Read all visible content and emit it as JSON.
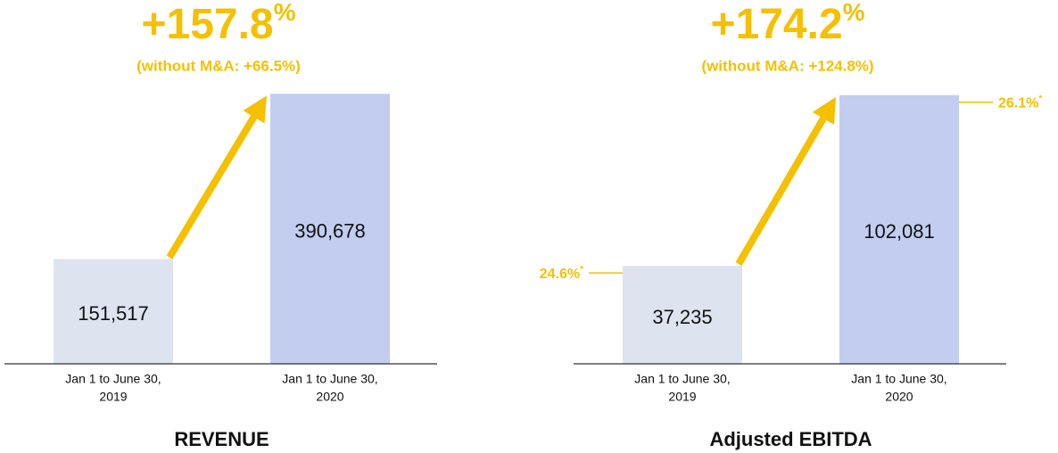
{
  "chart_data": [
    {
      "type": "bar",
      "title": "REVENUE",
      "growth": "+157.8",
      "growth_unit": "%",
      "subtitle": "(without M&A: +66.5%)",
      "categories": [
        [
          "Jan 1 to June 30,",
          "2019"
        ],
        [
          "Jan 1 to June 30,",
          "2020"
        ]
      ],
      "values": [
        151517,
        390678
      ],
      "value_labels": [
        "151,517",
        "390,678"
      ],
      "colors": [
        "#dde3ef",
        "#c2cdf0"
      ],
      "accent": "#f5c000",
      "ylim": [
        0,
        400000
      ]
    },
    {
      "type": "bar",
      "title": "Adjusted EBITDA",
      "growth": "+174.2",
      "growth_unit": "%",
      "subtitle": "(without M&A: +124.8%)",
      "categories": [
        [
          "Jan 1 to June 30,",
          "2019"
        ],
        [
          "Jan 1 to June 30,",
          "2020"
        ]
      ],
      "values": [
        37235,
        102081
      ],
      "value_labels": [
        "37,235",
        "102,081"
      ],
      "margin_labels": [
        "24.6%",
        "26.1%"
      ],
      "margin_note": "*",
      "colors": [
        "#dde3ef",
        "#c2cdf0"
      ],
      "accent": "#f5c000",
      "ylim": [
        0,
        105000
      ]
    }
  ]
}
